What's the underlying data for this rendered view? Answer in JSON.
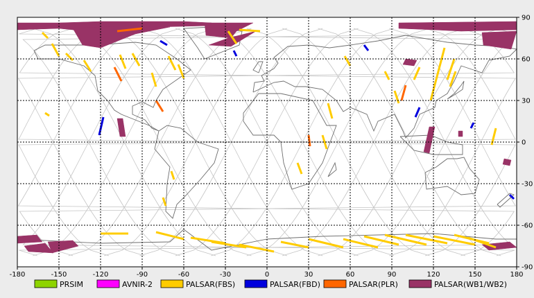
{
  "map": {
    "projection": "equirectangular",
    "lon_range": [
      -180,
      180
    ],
    "lat_range": [
      -90,
      90
    ],
    "grid": true,
    "x_ticks": [
      -180,
      -150,
      -120,
      -90,
      -60,
      -30,
      0,
      30,
      60,
      90,
      120,
      150,
      180
    ],
    "y_ticks": [
      90,
      60,
      30,
      0,
      -30,
      -60,
      -90
    ],
    "x_tick_labels": [
      "-180",
      "-150",
      "-120",
      "-90",
      "-60",
      "-30",
      "0",
      "30",
      "60",
      "90",
      "120",
      "150",
      "180"
    ],
    "y_tick_labels": [
      "90",
      "60",
      "30",
      "0",
      "-30",
      "-60",
      "-90"
    ]
  },
  "colors": {
    "background": "#ececec",
    "plot_bg": "#ffffff",
    "coastline": "#6e6e6e",
    "orbit_track": "#c4c4c4",
    "grid": "#000000"
  },
  "legend": [
    {
      "label": "PRSIM",
      "color": "#8ed400"
    },
    {
      "label": "AVNIR-2",
      "color": "#ff00ff"
    },
    {
      "label": "PALSAR(FBS)",
      "color": "#ffcc00"
    },
    {
      "label": "PALSAR(FBD)",
      "color": "#0000dd"
    },
    {
      "label": "PALSAR(PLR)",
      "color": "#ff6600"
    },
    {
      "label": "PALSAR(WB1/WB2)",
      "color": "#993366"
    }
  ],
  "chart_data": {
    "type": "scatter",
    "xlabel": "",
    "ylabel": "",
    "xlim": [
      -180,
      180
    ],
    "ylim": [
      -90,
      90
    ],
    "swaths": [
      {
        "sensor": "PALSAR(WB1/WB2)",
        "poly": [
          [
            -180,
            86
          ],
          [
            -150,
            86
          ],
          [
            -120,
            87
          ],
          [
            -60,
            87
          ],
          [
            -40,
            86
          ],
          [
            -40,
            84
          ],
          [
            -80,
            83
          ],
          [
            -100,
            81
          ],
          [
            -118,
            76
          ],
          [
            -130,
            80
          ],
          [
            -150,
            82
          ],
          [
            -180,
            81
          ]
        ]
      },
      {
        "sensor": "PALSAR(WB1/WB2)",
        "poly": [
          [
            -140,
            82
          ],
          [
            -100,
            84
          ],
          [
            -70,
            83
          ],
          [
            -95,
            78
          ],
          [
            -120,
            68
          ],
          [
            -133,
            70
          ]
        ]
      },
      {
        "sensor": "PALSAR(WB1/WB2)",
        "poly": [
          [
            -45,
            86
          ],
          [
            -10,
            86
          ],
          [
            -22,
            80
          ],
          [
            -26,
            75
          ],
          [
            -44,
            77
          ]
        ]
      },
      {
        "sensor": "PALSAR(WB1/WB2)",
        "poly": [
          [
            -28,
            75
          ],
          [
            -8,
            80
          ],
          [
            -26,
            69
          ],
          [
            -42,
            70
          ]
        ]
      },
      {
        "sensor": "PALSAR(WB1/WB2)",
        "poly": [
          [
            95,
            86
          ],
          [
            180,
            87
          ],
          [
            180,
            81
          ],
          [
            140,
            80
          ],
          [
            120,
            81
          ],
          [
            95,
            82
          ]
        ]
      },
      {
        "sensor": "PALSAR(WB1/WB2)",
        "poly": [
          [
            155,
            79
          ],
          [
            180,
            80
          ],
          [
            176,
            67
          ],
          [
            156,
            70
          ]
        ]
      },
      {
        "sensor": "PALSAR(WB1/WB2)",
        "poly": [
          [
            100,
            60
          ],
          [
            108,
            59
          ],
          [
            106,
            55
          ],
          [
            98,
            56
          ]
        ]
      },
      {
        "sensor": "PALSAR(WB1/WB2)",
        "poly": [
          [
            -108,
            17
          ],
          [
            -104,
            17
          ],
          [
            -102,
            4
          ],
          [
            -106,
            4
          ]
        ]
      },
      {
        "sensor": "PALSAR(WB1/WB2)",
        "poly": [
          [
            117,
            11
          ],
          [
            121,
            11
          ],
          [
            117,
            -8
          ],
          [
            113,
            -7
          ]
        ]
      },
      {
        "sensor": "PALSAR(WB1/WB2)",
        "poly": [
          [
            138,
            8
          ],
          [
            141,
            8
          ],
          [
            141,
            4
          ],
          [
            138,
            4
          ]
        ]
      },
      {
        "sensor": "PALSAR(WB1/WB2)",
        "poly": [
          [
            171,
            -12
          ],
          [
            176,
            -13
          ],
          [
            175,
            -17
          ],
          [
            170,
            -16
          ]
        ]
      },
      {
        "sensor": "PALSAR(WB1/WB2)",
        "poly": [
          [
            -180,
            -68
          ],
          [
            -166,
            -67
          ],
          [
            -162,
            -72
          ],
          [
            -180,
            -73
          ]
        ]
      },
      {
        "sensor": "PALSAR(WB1/WB2)",
        "poly": [
          [
            -158,
            -72
          ],
          [
            -140,
            -71
          ],
          [
            -136,
            -75
          ],
          [
            -155,
            -80
          ]
        ]
      },
      {
        "sensor": "PALSAR(WB1/WB2)",
        "poly": [
          [
            -175,
            -75
          ],
          [
            -160,
            -73
          ],
          [
            -154,
            -80
          ],
          [
            -172,
            -79
          ]
        ]
      },
      {
        "sensor": "PALSAR(WB1/WB2)",
        "poly": [
          [
            155,
            -74
          ],
          [
            175,
            -72
          ],
          [
            180,
            -76
          ],
          [
            160,
            -78
          ]
        ]
      },
      {
        "sensor": "PALSAR(FBS)",
        "line": [
          [
            -162,
            79
          ],
          [
            -158,
            75
          ]
        ]
      },
      {
        "sensor": "PALSAR(FBS)",
        "line": [
          [
            -155,
            71
          ],
          [
            -150,
            62
          ]
        ]
      },
      {
        "sensor": "PALSAR(FBS)",
        "line": [
          [
            -145,
            64
          ],
          [
            -140,
            59
          ]
        ]
      },
      {
        "sensor": "PALSAR(FBS)",
        "line": [
          [
            -132,
            59
          ],
          [
            -127,
            51
          ]
        ]
      },
      {
        "sensor": "PALSAR(FBS)",
        "line": [
          [
            -106,
            63
          ],
          [
            -102,
            53
          ]
        ]
      },
      {
        "sensor": "PALSAR(FBS)",
        "line": [
          [
            -97,
            64
          ],
          [
            -92,
            55
          ]
        ]
      },
      {
        "sensor": "PALSAR(FBS)",
        "line": [
          [
            -83,
            50
          ],
          [
            -80,
            40
          ]
        ]
      },
      {
        "sensor": "PALSAR(FBS)",
        "line": [
          [
            -71,
            62
          ],
          [
            -66,
            52
          ]
        ]
      },
      {
        "sensor": "PALSAR(FBS)",
        "line": [
          [
            -64,
            56
          ],
          [
            -60,
            46
          ]
        ]
      },
      {
        "sensor": "PALSAR(FBS)",
        "line": [
          [
            -20,
            81
          ],
          [
            -5,
            80
          ]
        ]
      },
      {
        "sensor": "PALSAR(FBS)",
        "line": [
          [
            -28,
            80
          ],
          [
            -22,
            71
          ]
        ]
      },
      {
        "sensor": "PALSAR(FBS)",
        "line": [
          [
            -160,
            21
          ],
          [
            -157,
            19
          ]
        ]
      },
      {
        "sensor": "PALSAR(FBS)",
        "line": [
          [
            -75,
            -40
          ],
          [
            -73,
            -46
          ]
        ]
      },
      {
        "sensor": "PALSAR(FBS)",
        "line": [
          [
            -69,
            -21
          ],
          [
            -67,
            -27
          ]
        ]
      },
      {
        "sensor": "PALSAR(FBS)",
        "line": [
          [
            -100,
            -66
          ],
          [
            -120,
            -66
          ]
        ]
      },
      {
        "sensor": "PALSAR(FBS)",
        "line": [
          [
            -80,
            -65
          ],
          [
            -60,
            -70
          ]
        ]
      },
      {
        "sensor": "PALSAR(FBS)",
        "line": [
          [
            -40,
            -72
          ],
          [
            -15,
            -76
          ]
        ]
      },
      {
        "sensor": "PALSAR(FBS)",
        "line": [
          [
            -20,
            -74
          ],
          [
            5,
            -79
          ]
        ]
      },
      {
        "sensor": "PALSAR(FBS)",
        "line": [
          [
            30,
            -70
          ],
          [
            55,
            -76
          ]
        ]
      },
      {
        "sensor": "PALSAR(FBS)",
        "line": [
          [
            55,
            -70
          ],
          [
            80,
            -76
          ]
        ]
      },
      {
        "sensor": "PALSAR(FBS)",
        "line": [
          [
            70,
            -68
          ],
          [
            95,
            -74
          ]
        ]
      },
      {
        "sensor": "PALSAR(FBS)",
        "line": [
          [
            85,
            -67
          ],
          [
            115,
            -74
          ]
        ]
      },
      {
        "sensor": "PALSAR(FBS)",
        "line": [
          [
            100,
            -67
          ],
          [
            130,
            -73
          ]
        ]
      },
      {
        "sensor": "PALSAR(FBS)",
        "line": [
          [
            120,
            -68
          ],
          [
            150,
            -74
          ]
        ]
      },
      {
        "sensor": "PALSAR(FBS)",
        "line": [
          [
            135,
            -67
          ],
          [
            160,
            -73
          ]
        ]
      },
      {
        "sensor": "PALSAR(FBS)",
        "line": [
          [
            145,
            -69
          ],
          [
            165,
            -76
          ]
        ]
      },
      {
        "sensor": "PALSAR(FBS)",
        "line": [
          [
            10,
            -72
          ],
          [
            30,
            -76
          ]
        ]
      },
      {
        "sensor": "PALSAR(FBS)",
        "line": [
          [
            -55,
            -69
          ],
          [
            -30,
            -73
          ]
        ]
      },
      {
        "sensor": "PALSAR(FBS)",
        "line": [
          [
            22,
            -15
          ],
          [
            25,
            -23
          ]
        ]
      },
      {
        "sensor": "PALSAR(FBS)",
        "line": [
          [
            40,
            5
          ],
          [
            43,
            -5
          ]
        ]
      },
      {
        "sensor": "PALSAR(FBS)",
        "line": [
          [
            56,
            62
          ],
          [
            60,
            55
          ]
        ]
      },
      {
        "sensor": "PALSAR(FBS)",
        "line": [
          [
            85,
            51
          ],
          [
            88,
            45
          ]
        ]
      },
      {
        "sensor": "PALSAR(FBS)",
        "line": [
          [
            110,
            54
          ],
          [
            106,
            45
          ]
        ]
      },
      {
        "sensor": "PALSAR(FBS)",
        "line": [
          [
            128,
            68
          ],
          [
            118,
            30
          ]
        ]
      },
      {
        "sensor": "PALSAR(FBS)",
        "line": [
          [
            135,
            60
          ],
          [
            130,
            45
          ]
        ]
      },
      {
        "sensor": "PALSAR(FBS)",
        "line": [
          [
            136,
            51
          ],
          [
            132,
            40
          ]
        ]
      },
      {
        "sensor": "PALSAR(FBS)",
        "line": [
          [
            165,
            10
          ],
          [
            162,
            -2
          ]
        ]
      },
      {
        "sensor": "PALSAR(FBS)",
        "line": [
          [
            44,
            28
          ],
          [
            47,
            17
          ]
        ]
      },
      {
        "sensor": "PALSAR(FBS)",
        "line": [
          [
            92,
            37
          ],
          [
            95,
            28
          ]
        ]
      },
      {
        "sensor": "PALSAR(FBD)",
        "line": [
          [
            -77,
            73
          ],
          [
            -72,
            70
          ]
        ]
      },
      {
        "sensor": "PALSAR(FBD)",
        "line": [
          [
            -118,
            18
          ],
          [
            -121,
            5
          ]
        ]
      },
      {
        "sensor": "PALSAR(FBD)",
        "line": [
          [
            110,
            25
          ],
          [
            107,
            18
          ]
        ]
      },
      {
        "sensor": "PALSAR(FBD)",
        "line": [
          [
            149,
            14
          ],
          [
            147,
            10
          ]
        ]
      },
      {
        "sensor": "PALSAR(FBD)",
        "line": [
          [
            -24,
            66
          ],
          [
            -22,
            62
          ]
        ]
      },
      {
        "sensor": "PALSAR(FBD)",
        "line": [
          [
            70,
            70
          ],
          [
            73,
            66
          ]
        ]
      },
      {
        "sensor": "PALSAR(FBD)",
        "line": [
          [
            175,
            -38
          ],
          [
            178,
            -41
          ]
        ]
      },
      {
        "sensor": "PALSAR(PLR)",
        "line": [
          [
            -110,
            54
          ],
          [
            -105,
            44
          ]
        ]
      },
      {
        "sensor": "PALSAR(PLR)",
        "line": [
          [
            30,
            5
          ],
          [
            31,
            -3
          ]
        ]
      },
      {
        "sensor": "PALSAR(PLR)",
        "line": [
          [
            100,
            41
          ],
          [
            97,
            30
          ]
        ]
      },
      {
        "sensor": "PALSAR(PLR)",
        "line": [
          [
            -80,
            30
          ],
          [
            -75,
            22
          ]
        ]
      },
      {
        "sensor": "PALSAR(PLR)",
        "line": [
          [
            -108,
            80
          ],
          [
            -90,
            82
          ]
        ]
      }
    ]
  }
}
